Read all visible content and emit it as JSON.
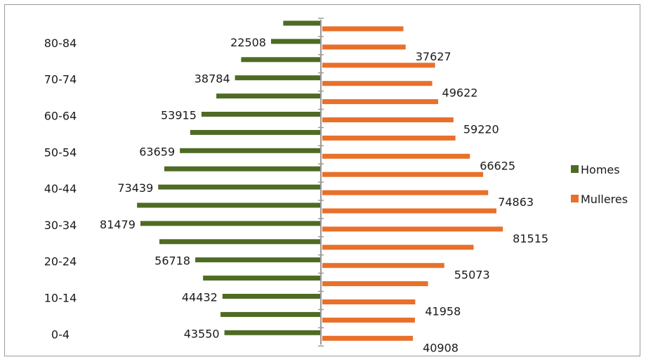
{
  "chart_data": {
    "type": "bar",
    "orientation": "horizontal-butterfly",
    "title": "",
    "xlabel": "",
    "ylabel": "",
    "grid": false,
    "legend": "right",
    "y_tick_labels": [
      "0-4",
      "10-14",
      "20-24",
      "30-34",
      "40-44",
      "50-54",
      "60-64",
      "70-74",
      "80-84"
    ],
    "series": [
      {
        "name": "Homes",
        "color": "#4e6b24",
        "values": [
          43550,
          45300,
          44432,
          53200,
          56718,
          72900,
          81479,
          83000,
          73439,
          70700,
          63659,
          59000,
          53915,
          47200,
          38784,
          36000,
          22508,
          17000
        ],
        "labels": [
          "43550",
          "",
          "44432",
          "",
          "56718",
          "",
          "81479",
          "",
          "73439",
          "",
          "63659",
          "",
          "53915",
          "",
          "38784",
          "",
          "22508",
          ""
        ]
      },
      {
        "name": "Mulleres",
        "color": "#e8702b",
        "values": [
          40908,
          41800,
          41958,
          47700,
          55073,
          68300,
          81515,
          78600,
          74863,
          72600,
          66625,
          60100,
          59220,
          52300,
          49622,
          50900,
          37627,
          36600
        ],
        "labels": [
          "40908",
          "",
          "41958",
          "",
          "55073",
          "",
          "81515",
          "",
          "74863",
          "",
          "66625",
          "",
          "59220",
          "",
          "49622",
          "",
          "37627",
          ""
        ]
      }
    ]
  }
}
